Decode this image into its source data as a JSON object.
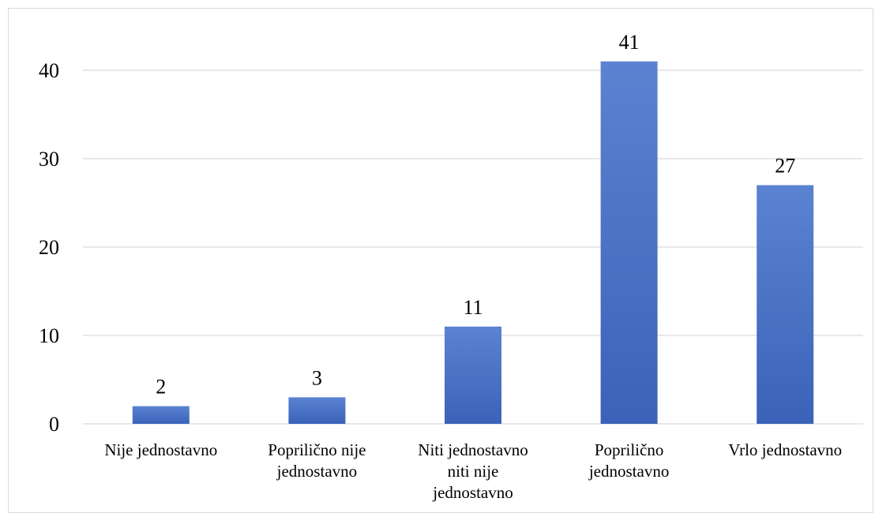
{
  "chart_data": {
    "type": "bar",
    "categories": [
      [
        "Nije jednostavno"
      ],
      [
        "Popriličn​o nije",
        "jednostavno"
      ],
      [
        "Niti jednostavno",
        "niti nije",
        "jednostavno"
      ],
      [
        "Popriličn​o",
        "jednostavno"
      ],
      [
        "Vrlo jednostavno"
      ]
    ],
    "values": [
      2,
      3,
      11,
      41,
      27
    ],
    "ylim": [
      0,
      45
    ],
    "yticks": [
      0,
      10,
      20,
      30,
      40
    ],
    "grid": true,
    "bar_color": "#4a72c4",
    "bar_color_light": "#5b83d2",
    "bar_color_dark": "#3a62b8"
  }
}
